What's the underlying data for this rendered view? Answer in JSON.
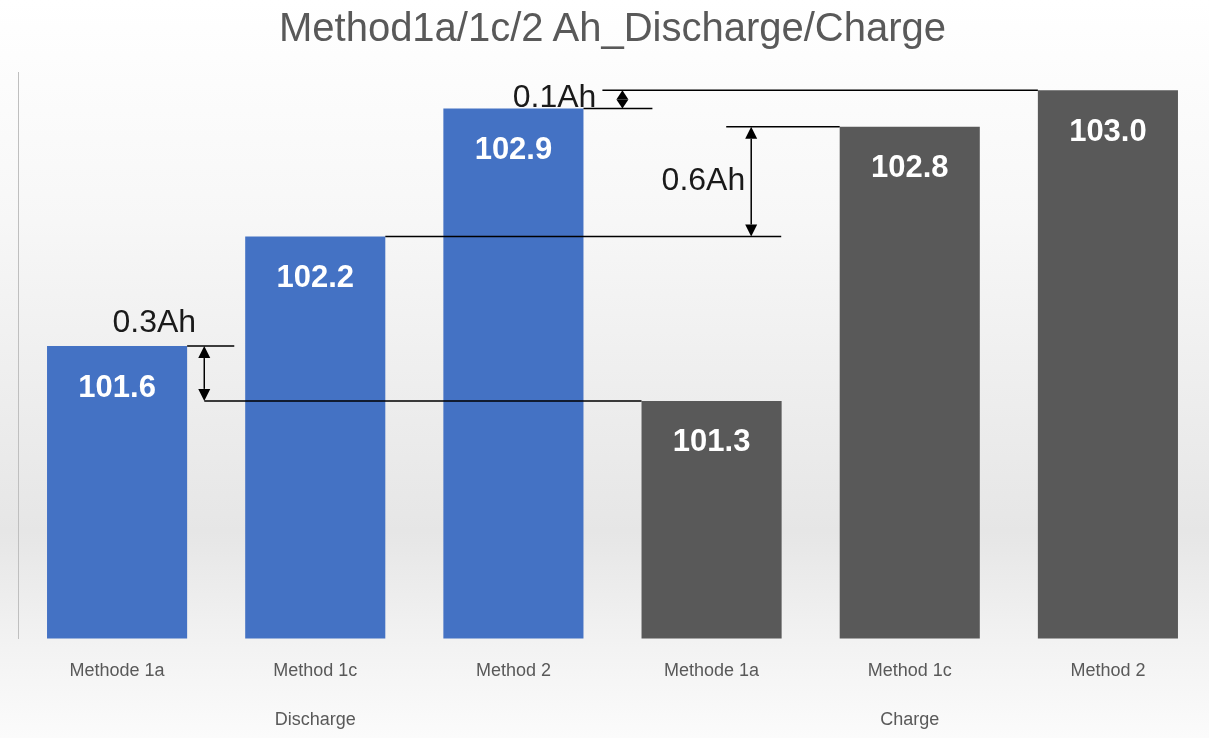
{
  "chart_data": {
    "type": "bar",
    "title": "Method1a/1c/2 Ah_Discharge/Charge",
    "categories": [
      "Methode 1a",
      "Method 1c",
      "Method 2",
      "Methode 1a",
      "Method 1c",
      "Method 2"
    ],
    "series": [
      {
        "name": "Discharge",
        "color": "#4472c4",
        "values": [
          101.6,
          102.2,
          102.9,
          null,
          null,
          null
        ],
        "value_labels": [
          "101.6",
          "102.2",
          "102.9",
          null,
          null,
          null
        ]
      },
      {
        "name": "Charge",
        "color": "#595959",
        "values": [
          null,
          null,
          null,
          101.3,
          102.8,
          103.0
        ],
        "value_labels": [
          null,
          null,
          null,
          "101.3",
          "102.8",
          "103.0"
        ]
      }
    ],
    "ylim": [
      100,
      103.1
    ],
    "tick_labels": "x",
    "annotations": [
      "0.3Ah",
      "0.6Ah",
      "0.1Ah"
    ]
  }
}
